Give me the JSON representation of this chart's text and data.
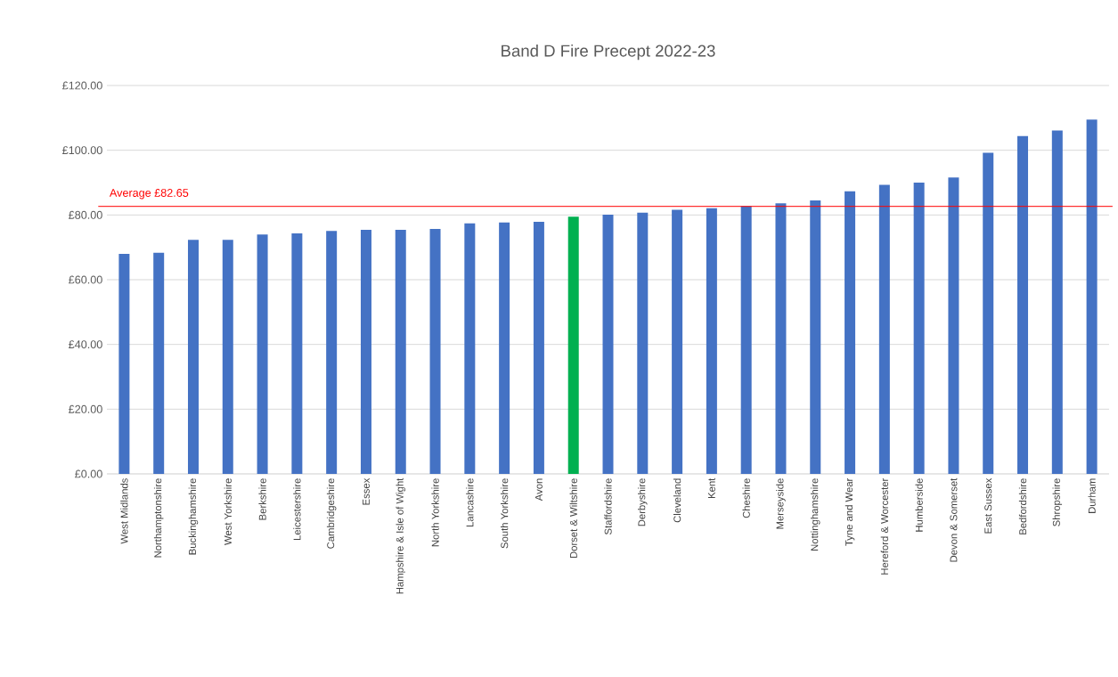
{
  "chart_data": {
    "type": "bar",
    "title": "Band D Fire Precept 2022-23",
    "categories": [
      "West Midlands",
      "Northamptonshire",
      "Buckinghamshire",
      "West Yorkshire",
      "Berkshire",
      "Leicestershire",
      "Cambridgeshire",
      "Essex",
      "Hampshire & Isle of Wight",
      "North Yorkshire",
      "Lancashire",
      "South Yorkshire",
      "Avon",
      "Dorset & Wiltshire",
      "Staffordshire",
      "Derbyshire",
      "Cleveland",
      "Kent",
      "Cheshire",
      "Merseyside",
      "Nottinghamshire",
      "Tyne and Wear",
      "Hereford & Worcester",
      "Humberside",
      "Devon & Somerset",
      "East Sussex",
      "Bedfordshire",
      "Shropshire",
      "Durham"
    ],
    "values": [
      68.0,
      68.3,
      72.3,
      72.3,
      74.0,
      74.3,
      75.1,
      75.4,
      75.4,
      75.7,
      77.4,
      77.7,
      77.9,
      79.5,
      80.1,
      80.7,
      81.6,
      82.1,
      82.7,
      83.6,
      84.5,
      87.3,
      89.3,
      90.0,
      91.6,
      99.2,
      104.4,
      106.1,
      109.5
    ],
    "colors": [
      "#4472c4",
      "#4472c4",
      "#4472c4",
      "#4472c4",
      "#4472c4",
      "#4472c4",
      "#4472c4",
      "#4472c4",
      "#4472c4",
      "#4472c4",
      "#4472c4",
      "#4472c4",
      "#4472c4",
      "#00b050",
      "#4472c4",
      "#4472c4",
      "#4472c4",
      "#4472c4",
      "#4472c4",
      "#4472c4",
      "#4472c4",
      "#4472c4",
      "#4472c4",
      "#4472c4",
      "#4472c4",
      "#4472c4",
      "#4472c4",
      "#4472c4",
      "#4472c4"
    ],
    "ylim": [
      0,
      120
    ],
    "yticks": [
      {
        "value": 0,
        "label": "£0.00"
      },
      {
        "value": 20,
        "label": "£20.00"
      },
      {
        "value": 40,
        "label": "£40.00"
      },
      {
        "value": 60,
        "label": "£60.00"
      },
      {
        "value": 80,
        "label": "£80.00"
      },
      {
        "value": 100,
        "label": "£100.00"
      },
      {
        "value": 120,
        "label": "£120.00"
      }
    ],
    "grid": "y",
    "ref_lines": [
      {
        "axis": "y",
        "value": 82.65,
        "label": "Average £82.65",
        "color": "#ff0000"
      }
    ]
  }
}
